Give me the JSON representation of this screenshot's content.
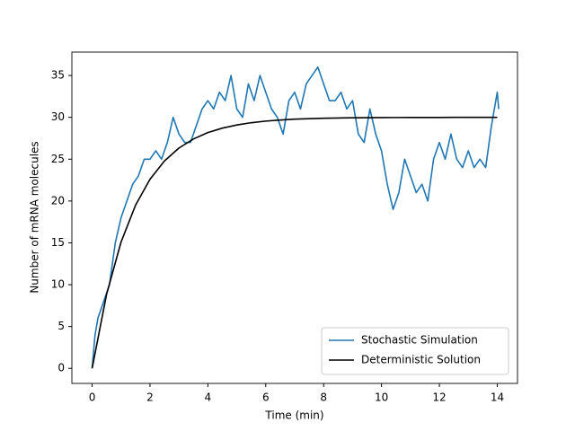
{
  "chart_data": {
    "type": "line",
    "xlabel": "Time (min)",
    "ylabel": "Number of mRNA molecules",
    "xlim": [
      -0.7,
      14.7
    ],
    "ylim": [
      -1.8,
      37.8
    ],
    "xticks": [
      0,
      2,
      4,
      6,
      8,
      10,
      12,
      14
    ],
    "yticks": [
      0,
      5,
      10,
      15,
      20,
      25,
      30,
      35
    ],
    "legend": "lower right",
    "series": [
      {
        "name": "Stochastic Simulation",
        "color": "#1f77b4",
        "x": [
          0,
          0.1,
          0.2,
          0.4,
          0.6,
          0.8,
          1.0,
          1.2,
          1.4,
          1.6,
          1.8,
          2.0,
          2.2,
          2.4,
          2.6,
          2.8,
          3.0,
          3.2,
          3.4,
          3.6,
          3.8,
          4.0,
          4.2,
          4.4,
          4.6,
          4.8,
          5.0,
          5.2,
          5.4,
          5.6,
          5.8,
          6.0,
          6.2,
          6.4,
          6.6,
          6.8,
          7.0,
          7.2,
          7.4,
          7.6,
          7.8,
          8.0,
          8.2,
          8.4,
          8.6,
          8.8,
          9.0,
          9.2,
          9.4,
          9.6,
          9.8,
          10.0,
          10.2,
          10.4,
          10.6,
          10.8,
          11.0,
          11.2,
          11.4,
          11.6,
          11.8,
          12.0,
          12.2,
          12.4,
          12.6,
          12.8,
          13.0,
          13.2,
          13.4,
          13.6,
          13.8,
          14.0,
          14.05
        ],
        "values": [
          0,
          4,
          6,
          8,
          10,
          15,
          18,
          20,
          22,
          23,
          25,
          25,
          26,
          25,
          27,
          30,
          28,
          27,
          27,
          29,
          31,
          32,
          31,
          33,
          32,
          35,
          31,
          30,
          34,
          32,
          35,
          33,
          31,
          30,
          28,
          32,
          33,
          31,
          34,
          35,
          36,
          34,
          32,
          32,
          33,
          31,
          32,
          28,
          27,
          31,
          28,
          26,
          22,
          19,
          21,
          25,
          23,
          21,
          22,
          20,
          25,
          27,
          25,
          28,
          25,
          24,
          26,
          24,
          25,
          24,
          29,
          33,
          31
        ]
      },
      {
        "name": "Deterministic Solution",
        "color": "#000000",
        "x": [
          0,
          0.5,
          1,
          1.5,
          2,
          2.5,
          3,
          3.5,
          4,
          4.5,
          5,
          5.5,
          6,
          6.5,
          7,
          7.5,
          8,
          8.5,
          9,
          9.5,
          10,
          10.5,
          11,
          11.5,
          12,
          12.5,
          13,
          13.5,
          14
        ],
        "values": [
          0,
          8.86,
          15.1,
          19.5,
          22.6,
          24.79,
          26.33,
          27.41,
          28.18,
          28.71,
          29.09,
          29.36,
          29.55,
          29.68,
          29.78,
          29.84,
          29.89,
          29.92,
          29.95,
          29.96,
          29.97,
          29.98,
          29.99,
          29.99,
          29.99,
          30,
          30,
          30,
          30
        ]
      }
    ]
  }
}
